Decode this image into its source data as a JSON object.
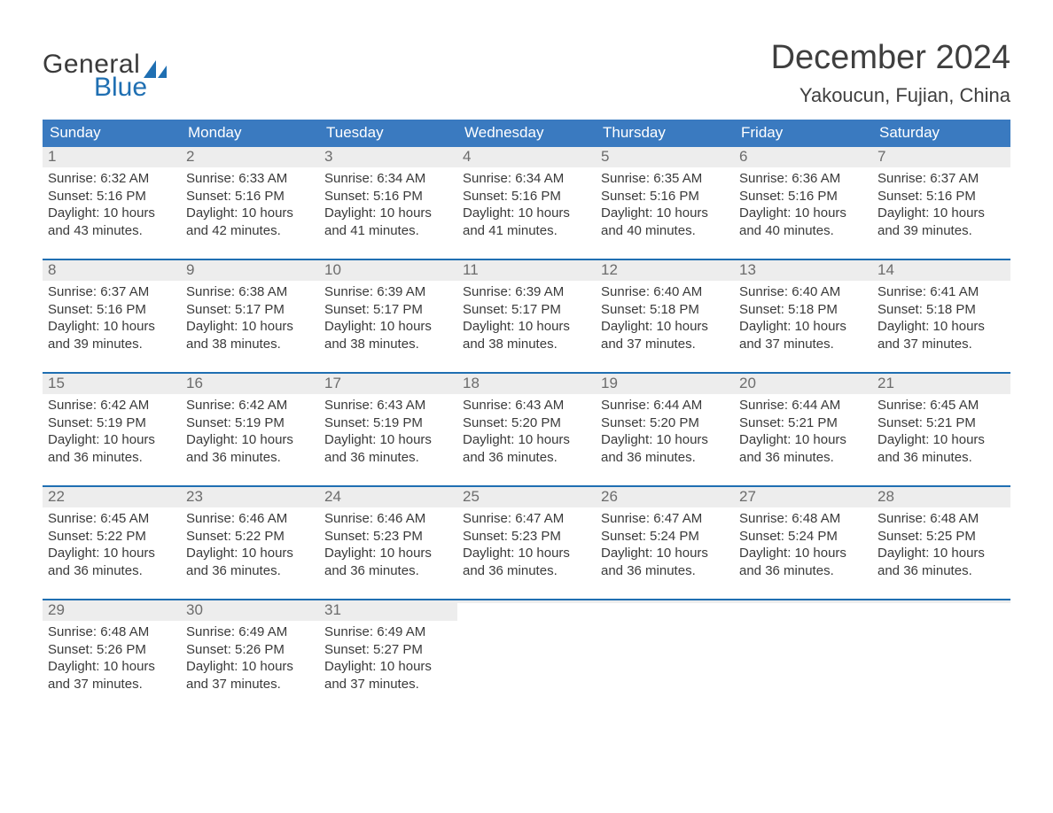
{
  "logo": {
    "word1": "General",
    "word2": "Blue"
  },
  "title": "December 2024",
  "location": "Yakoucun, Fujian, China",
  "colors": {
    "header_blue": "#3a7ac0",
    "accent_blue": "#1f6fb2",
    "row_grey": "#ededed",
    "text_dark": "#3a3a3a",
    "text_grey": "#6c6c6c"
  },
  "day_headers": [
    "Sunday",
    "Monday",
    "Tuesday",
    "Wednesday",
    "Thursday",
    "Friday",
    "Saturday"
  ],
  "labels": {
    "sunrise": "Sunrise:",
    "sunset": "Sunset:",
    "daylight": "Daylight:"
  },
  "weeks": [
    [
      {
        "n": 1,
        "sunrise": "6:32 AM",
        "sunset": "5:16 PM",
        "daylight": "10 hours and 43 minutes."
      },
      {
        "n": 2,
        "sunrise": "6:33 AM",
        "sunset": "5:16 PM",
        "daylight": "10 hours and 42 minutes."
      },
      {
        "n": 3,
        "sunrise": "6:34 AM",
        "sunset": "5:16 PM",
        "daylight": "10 hours and 41 minutes."
      },
      {
        "n": 4,
        "sunrise": "6:34 AM",
        "sunset": "5:16 PM",
        "daylight": "10 hours and 41 minutes."
      },
      {
        "n": 5,
        "sunrise": "6:35 AM",
        "sunset": "5:16 PM",
        "daylight": "10 hours and 40 minutes."
      },
      {
        "n": 6,
        "sunrise": "6:36 AM",
        "sunset": "5:16 PM",
        "daylight": "10 hours and 40 minutes."
      },
      {
        "n": 7,
        "sunrise": "6:37 AM",
        "sunset": "5:16 PM",
        "daylight": "10 hours and 39 minutes."
      }
    ],
    [
      {
        "n": 8,
        "sunrise": "6:37 AM",
        "sunset": "5:16 PM",
        "daylight": "10 hours and 39 minutes."
      },
      {
        "n": 9,
        "sunrise": "6:38 AM",
        "sunset": "5:17 PM",
        "daylight": "10 hours and 38 minutes."
      },
      {
        "n": 10,
        "sunrise": "6:39 AM",
        "sunset": "5:17 PM",
        "daylight": "10 hours and 38 minutes."
      },
      {
        "n": 11,
        "sunrise": "6:39 AM",
        "sunset": "5:17 PM",
        "daylight": "10 hours and 38 minutes."
      },
      {
        "n": 12,
        "sunrise": "6:40 AM",
        "sunset": "5:18 PM",
        "daylight": "10 hours and 37 minutes."
      },
      {
        "n": 13,
        "sunrise": "6:40 AM",
        "sunset": "5:18 PM",
        "daylight": "10 hours and 37 minutes."
      },
      {
        "n": 14,
        "sunrise": "6:41 AM",
        "sunset": "5:18 PM",
        "daylight": "10 hours and 37 minutes."
      }
    ],
    [
      {
        "n": 15,
        "sunrise": "6:42 AM",
        "sunset": "5:19 PM",
        "daylight": "10 hours and 36 minutes."
      },
      {
        "n": 16,
        "sunrise": "6:42 AM",
        "sunset": "5:19 PM",
        "daylight": "10 hours and 36 minutes."
      },
      {
        "n": 17,
        "sunrise": "6:43 AM",
        "sunset": "5:19 PM",
        "daylight": "10 hours and 36 minutes."
      },
      {
        "n": 18,
        "sunrise": "6:43 AM",
        "sunset": "5:20 PM",
        "daylight": "10 hours and 36 minutes."
      },
      {
        "n": 19,
        "sunrise": "6:44 AM",
        "sunset": "5:20 PM",
        "daylight": "10 hours and 36 minutes."
      },
      {
        "n": 20,
        "sunrise": "6:44 AM",
        "sunset": "5:21 PM",
        "daylight": "10 hours and 36 minutes."
      },
      {
        "n": 21,
        "sunrise": "6:45 AM",
        "sunset": "5:21 PM",
        "daylight": "10 hours and 36 minutes."
      }
    ],
    [
      {
        "n": 22,
        "sunrise": "6:45 AM",
        "sunset": "5:22 PM",
        "daylight": "10 hours and 36 minutes."
      },
      {
        "n": 23,
        "sunrise": "6:46 AM",
        "sunset": "5:22 PM",
        "daylight": "10 hours and 36 minutes."
      },
      {
        "n": 24,
        "sunrise": "6:46 AM",
        "sunset": "5:23 PM",
        "daylight": "10 hours and 36 minutes."
      },
      {
        "n": 25,
        "sunrise": "6:47 AM",
        "sunset": "5:23 PM",
        "daylight": "10 hours and 36 minutes."
      },
      {
        "n": 26,
        "sunrise": "6:47 AM",
        "sunset": "5:24 PM",
        "daylight": "10 hours and 36 minutes."
      },
      {
        "n": 27,
        "sunrise": "6:48 AM",
        "sunset": "5:24 PM",
        "daylight": "10 hours and 36 minutes."
      },
      {
        "n": 28,
        "sunrise": "6:48 AM",
        "sunset": "5:25 PM",
        "daylight": "10 hours and 36 minutes."
      }
    ],
    [
      {
        "n": 29,
        "sunrise": "6:48 AM",
        "sunset": "5:26 PM",
        "daylight": "10 hours and 37 minutes."
      },
      {
        "n": 30,
        "sunrise": "6:49 AM",
        "sunset": "5:26 PM",
        "daylight": "10 hours and 37 minutes."
      },
      {
        "n": 31,
        "sunrise": "6:49 AM",
        "sunset": "5:27 PM",
        "daylight": "10 hours and 37 minutes."
      },
      null,
      null,
      null,
      null
    ]
  ]
}
